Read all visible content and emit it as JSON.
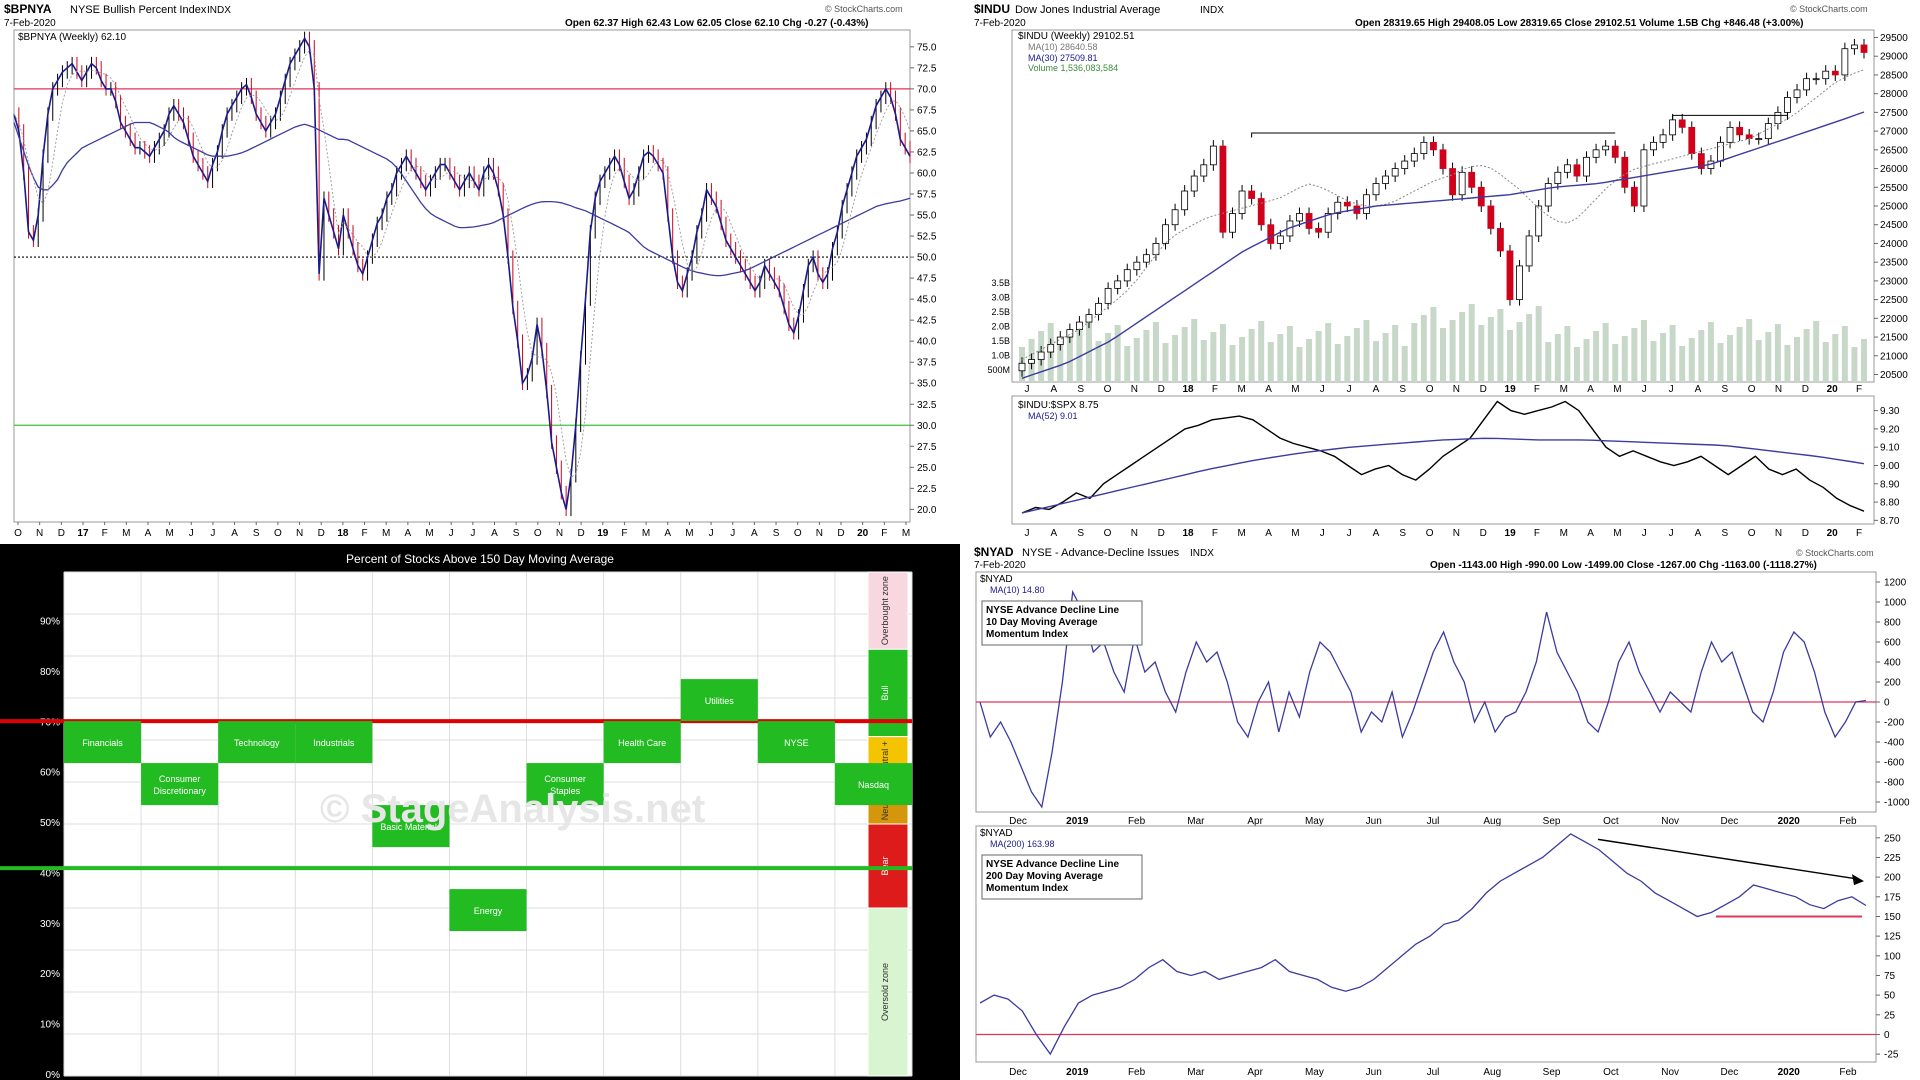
{
  "bpnya": {
    "symbol": "$BPNYA",
    "name": "NYSE Bullish Percent Index",
    "exchange": "INDX",
    "date": "7-Feb-2020",
    "quote": "Open 62.37   High 62.43   Low 62.05   Close 62.10   Chg -0.27 (-0.43%)",
    "watermark": "© StockCharts.com",
    "legend": "$BPNYA (Weekly) 62.10"
  },
  "indu": {
    "symbol": "$INDU",
    "name": "Dow Jones Industrial Average",
    "exchange": "INDX",
    "date": "7-Feb-2020",
    "quote": "Open 28319.65   High 29408.05   Low 28319.65   Close 29102.51   Volume 1.5B   Chg +846.48 (+3.00%)",
    "watermark": "© StockCharts.com",
    "legend_title": "$INDU (Weekly) 29102.51",
    "legend_ma10": "MA(10) 28640.58",
    "legend_ma30": "MA(30) 27509.81",
    "legend_volume": "Volume 1,536,083,584",
    "ratio_legend": "$INDU:$SPX 8.75",
    "ratio_ma": "MA(52) 9.01"
  },
  "nyad": {
    "symbol": "$NYAD",
    "name": "NYSE - Advance-Decline Issues",
    "exchange": "INDX",
    "date": "7-Feb-2020",
    "quote": "Open -1143.00   High -990.00   Low -1499.00   Close -1267.00   Chg -1163.00 (-1118.27%)",
    "watermark": "© StockCharts.com",
    "legend_sym": "$NYAD",
    "legend_ma10": "MA(10) 14.80",
    "box1_l1": "NYSE Advance Decline Line",
    "box1_l2": "10 Day Moving Average",
    "box1_l3": "Momentum Index",
    "legend_sym2": "$NYAD",
    "legend_ma200": "MA(200) 163.98",
    "box2_l1": "NYSE Advance Decline Line",
    "box2_l2": "200 Day Moving Average",
    "box2_l3": "Momentum Index"
  },
  "sectors": {
    "title": "Percent of Stocks Above 150 Day Moving Average",
    "watermark": "© StageAnalysis.net",
    "zones": [
      "Overbought zone",
      "Bull",
      "Neutral +",
      "Neutral -",
      "Bear",
      "Oversold zone"
    ]
  },
  "colors": {
    "price": "#1a1a8c",
    "ma_blue": "#3b3ba0",
    "up": "#000000",
    "down": "#d0021b",
    "redline": "#e0345a",
    "greenline": "#3ac43a",
    "sector_green": "#22bb22"
  },
  "chart_data": [
    {
      "type": "line",
      "title": "$BPNYA NYSE Bullish Percent Index",
      "x_ticks": [
        "O",
        "N",
        "D",
        "17",
        "F",
        "M",
        "A",
        "M",
        "J",
        "J",
        "A",
        "S",
        "O",
        "N",
        "D",
        "18",
        "F",
        "M",
        "A",
        "M",
        "J",
        "J",
        "A",
        "S",
        "O",
        "N",
        "D",
        "19",
        "F",
        "M",
        "A",
        "M",
        "J",
        "J",
        "A",
        "S",
        "O",
        "N",
        "D",
        "20",
        "F",
        "M"
      ],
      "y_ticks": [
        20.0,
        22.5,
        25.0,
        27.5,
        30.0,
        32.5,
        35.0,
        37.5,
        40.0,
        42.5,
        45.0,
        47.5,
        50.0,
        52.5,
        55.0,
        57.5,
        60.0,
        62.5,
        65.0,
        67.5,
        70.0,
        72.5,
        75.0
      ],
      "ylim": [
        18.5,
        77
      ],
      "reference_lines": [
        70,
        50,
        30
      ],
      "series": [
        {
          "name": "$BPNYA (Weekly)",
          "values": [
            67,
            65,
            60,
            53,
            52,
            55,
            62,
            67,
            70,
            71,
            72,
            72.5,
            73,
            72,
            71,
            72,
            73,
            72.5,
            71,
            70,
            70,
            68.5,
            66,
            65,
            64,
            63,
            63,
            62.5,
            62,
            63,
            64,
            65,
            67,
            68,
            67,
            66,
            64,
            62,
            61,
            60,
            59,
            61,
            62.5,
            65,
            67,
            68,
            69,
            70,
            70.5,
            69,
            67,
            66,
            65,
            66,
            67,
            69,
            71,
            73,
            74,
            75,
            76,
            75,
            70,
            48,
            57,
            55,
            53,
            51,
            55,
            53,
            51,
            49,
            48,
            50,
            52,
            54,
            55,
            57,
            58,
            60,
            61,
            62,
            61,
            60,
            59,
            58,
            59,
            60,
            61,
            61,
            60,
            59,
            58,
            59,
            60,
            59,
            58,
            60,
            61,
            60,
            58,
            55,
            50,
            44,
            40,
            35,
            36,
            38,
            42,
            39,
            34,
            28,
            25,
            22,
            20,
            24,
            30,
            38,
            45,
            53,
            57,
            59,
            60,
            61,
            62,
            61,
            59,
            57,
            58,
            60,
            62,
            62.5,
            62,
            61,
            60,
            55,
            50,
            47,
            46,
            48,
            50,
            53,
            55,
            58,
            57,
            56,
            54,
            52,
            51,
            50,
            49,
            48,
            47,
            46,
            47,
            49,
            48,
            47,
            46,
            44,
            42,
            41,
            43,
            46,
            49,
            50,
            48,
            47,
            48,
            51,
            53,
            56,
            58,
            60,
            62,
            63,
            64,
            66,
            68,
            69,
            70,
            69,
            67,
            64,
            63,
            62
          ]
        },
        {
          "name": "MA",
          "values": [
            66,
            63,
            60,
            58,
            58,
            59,
            61,
            62,
            63,
            63.5,
            64,
            64.5,
            65,
            65.5,
            66,
            66,
            66,
            65.5,
            65,
            64,
            63.5,
            63,
            62.5,
            62,
            62,
            62,
            62.2,
            62.5,
            63,
            63.5,
            64,
            64.5,
            65,
            65.5,
            65.8,
            65.5,
            65,
            64.5,
            64,
            64,
            63.5,
            63,
            62.5,
            62,
            61.5,
            60.5,
            59,
            57.5,
            56,
            55,
            54.5,
            54,
            53.5,
            53.5,
            53.6,
            53.8,
            54,
            54.5,
            55,
            55.5,
            56,
            56.4,
            56.6,
            56.6,
            56.5,
            56.2,
            55.8,
            55.5,
            55,
            54.5,
            54,
            53.5,
            53,
            52,
            51,
            50.5,
            50,
            49.5,
            49,
            48.5,
            48.2,
            48,
            47.8,
            47.8,
            48,
            48.2,
            48.5,
            49,
            49.5,
            50,
            50.5,
            51,
            51.5,
            52,
            52.5,
            53,
            53.5,
            54,
            54.5,
            55,
            55.5,
            56,
            56.3,
            56.5,
            56.7,
            57
          ]
        }
      ]
    },
    {
      "type": "line",
      "title": "$INDU Dow Jones Industrial Average",
      "x_ticks": [
        "J",
        "A",
        "S",
        "O",
        "N",
        "D",
        "18",
        "F",
        "M",
        "A",
        "M",
        "J",
        "J",
        "A",
        "S",
        "O",
        "N",
        "D",
        "19",
        "F",
        "M",
        "A",
        "M",
        "J",
        "J",
        "A",
        "S",
        "O",
        "N",
        "D",
        "20",
        "F"
      ],
      "y_ticks": [
        20500,
        21000,
        21500,
        22000,
        22500,
        23000,
        23500,
        24000,
        24500,
        25000,
        25500,
        26000,
        26500,
        27000,
        27500,
        28000,
        28500,
        29000,
        29500
      ],
      "ylim": [
        20300,
        29700
      ],
      "volume_ticks": [
        "500M",
        "1.0B",
        "1.5B",
        "2.0B",
        "2.5B",
        "3.0B",
        "3.5B"
      ],
      "series": [
        {
          "name": "$INDU (Weekly)",
          "values": [
            20800,
            20900,
            21100,
            21300,
            21500,
            21700,
            21900,
            22100,
            22400,
            22800,
            23000,
            23300,
            23500,
            23700,
            24000,
            24500,
            24900,
            25400,
            25800,
            26100,
            26600,
            24300,
            24800,
            25400,
            25200,
            24500,
            24000,
            24200,
            24600,
            24800,
            24400,
            24300,
            24800,
            25100,
            25000,
            24800,
            25300,
            25600,
            25800,
            26000,
            26200,
            26400,
            26700,
            26500,
            26000,
            25300,
            25900,
            25500,
            25000,
            24400,
            23800,
            22500,
            23400,
            24200,
            25000,
            25600,
            25900,
            26100,
            25800,
            26300,
            26500,
            26600,
            26300,
            25500,
            25000,
            26500,
            26700,
            26900,
            27300,
            27100,
            26400,
            26000,
            26200,
            26700,
            27100,
            26900,
            26800,
            26800,
            27200,
            27500,
            27900,
            28100,
            28400,
            28400,
            28600,
            28500,
            29200,
            29300,
            29100
          ]
        },
        {
          "name": "MA(10)",
          "values": [
            20900,
            21100,
            21300,
            21500,
            21700,
            22000,
            22300,
            22600,
            23000,
            23500,
            24000,
            24300,
            24500,
            24700,
            24800,
            24900,
            25000,
            25100,
            25200,
            25400,
            25600,
            25500,
            25300,
            25100,
            25000,
            25000,
            25100,
            25300,
            25500,
            25700,
            25800,
            26000,
            26100,
            26000,
            25700,
            25400,
            25000,
            24700,
            24500,
            24700,
            25100,
            25500,
            25800,
            26000,
            26100,
            26200,
            26300,
            26400,
            26500,
            26600,
            26700,
            26800,
            27000,
            27200,
            27400,
            27700,
            28000,
            28300,
            28500,
            28640
          ]
        },
        {
          "name": "MA(30)",
          "values": [
            20400,
            20600,
            20800,
            21100,
            21400,
            21800,
            22200,
            22600,
            23000,
            23400,
            23800,
            24100,
            24400,
            24600,
            24800,
            24900,
            25000,
            25050,
            25100,
            25150,
            25200,
            25250,
            25300,
            25400,
            25500,
            25550,
            25600,
            25700,
            25800,
            25900,
            26000,
            26100,
            26300,
            26500,
            26700,
            26900,
            27100,
            27300,
            27510
          ]
        },
        {
          "name": "$INDU:$SPX",
          "values": [
            8.74,
            8.77,
            8.76,
            8.8,
            8.85,
            8.82,
            8.9,
            8.95,
            9.0,
            9.05,
            9.1,
            9.15,
            9.2,
            9.22,
            9.25,
            9.26,
            9.27,
            9.25,
            9.2,
            9.15,
            9.12,
            9.1,
            9.08,
            9.05,
            9.0,
            8.95,
            8.98,
            9.0,
            8.95,
            8.92,
            8.98,
            9.05,
            9.1,
            9.15,
            9.25,
            9.35,
            9.3,
            9.28,
            9.3,
            9.32,
            9.35,
            9.3,
            9.2,
            9.1,
            9.05,
            9.08,
            9.05,
            9.02,
            9.0,
            9.02,
            9.05,
            9.0,
            8.95,
            9.0,
            9.05,
            8.98,
            8.95,
            8.98,
            8.92,
            8.88,
            8.82,
            8.78,
            8.75
          ]
        },
        {
          "name": "MA(52)",
          "values": [
            8.74,
            8.8,
            8.86,
            8.92,
            8.98,
            9.03,
            9.07,
            9.1,
            9.12,
            9.14,
            9.15,
            9.14,
            9.14,
            9.13,
            9.12,
            9.11,
            9.08,
            9.05,
            9.01
          ]
        }
      ]
    },
    {
      "type": "line",
      "title": "$NYAD NYSE - Advance-Decline Issues (MA 10)",
      "x_ticks": [
        "Dec",
        "2019",
        "Feb",
        "Mar",
        "Apr",
        "May",
        "Jun",
        "Jul",
        "Aug",
        "Sep",
        "Oct",
        "Nov",
        "Dec",
        "2020",
        "Feb"
      ],
      "y_ticks": [
        -1000,
        -800,
        -600,
        -400,
        -200,
        0,
        200,
        400,
        600,
        800,
        1000,
        1200
      ],
      "ylim": [
        -1100,
        1300
      ],
      "reference_lines": [
        0
      ],
      "series": [
        {
          "name": "MA(10)",
          "values": [
            0,
            -350,
            -200,
            -400,
            -650,
            -900,
            -1050,
            -500,
            200,
            1100,
            900,
            500,
            600,
            300,
            100,
            650,
            300,
            400,
            100,
            -100,
            300,
            600,
            400,
            500,
            200,
            -200,
            -350,
            0,
            200,
            -300,
            100,
            -150,
            300,
            600,
            500,
            300,
            100,
            -300,
            -100,
            -200,
            100,
            -350,
            -100,
            200,
            500,
            700,
            400,
            200,
            -200,
            0,
            -300,
            -150,
            -100,
            100,
            400,
            900,
            500,
            300,
            100,
            -200,
            -300,
            0,
            400,
            600,
            300,
            100,
            -100,
            100,
            0,
            -100,
            300,
            600,
            400,
            500,
            200,
            -100,
            -200,
            100,
            500,
            700,
            600,
            300,
            -100,
            -350,
            -200,
            0,
            14.8
          ]
        }
      ]
    },
    {
      "type": "line",
      "title": "$NYAD NYSE - Advance-Decline Issues (MA 200)",
      "x_ticks": [
        "Dec",
        "2019",
        "Feb",
        "Mar",
        "Apr",
        "May",
        "Jun",
        "Jul",
        "Aug",
        "Sep",
        "Oct",
        "Nov",
        "Dec",
        "2020",
        "Feb"
      ],
      "y_ticks": [
        -25,
        0,
        25,
        50,
        75,
        100,
        125,
        150,
        175,
        200,
        225,
        250
      ],
      "ylim": [
        -35,
        265
      ],
      "reference_lines": [
        0,
        150
      ],
      "series": [
        {
          "name": "MA(200)",
          "values": [
            40,
            50,
            45,
            30,
            0,
            -25,
            10,
            40,
            50,
            55,
            60,
            70,
            85,
            95,
            80,
            75,
            80,
            70,
            75,
            80,
            85,
            95,
            80,
            75,
            70,
            60,
            55,
            60,
            70,
            85,
            100,
            115,
            125,
            140,
            145,
            160,
            180,
            195,
            205,
            215,
            225,
            240,
            255,
            245,
            235,
            220,
            205,
            195,
            180,
            170,
            160,
            150,
            155,
            165,
            175,
            190,
            185,
            180,
            175,
            165,
            160,
            170,
            175,
            164
          ]
        }
      ]
    }
  ]
}
